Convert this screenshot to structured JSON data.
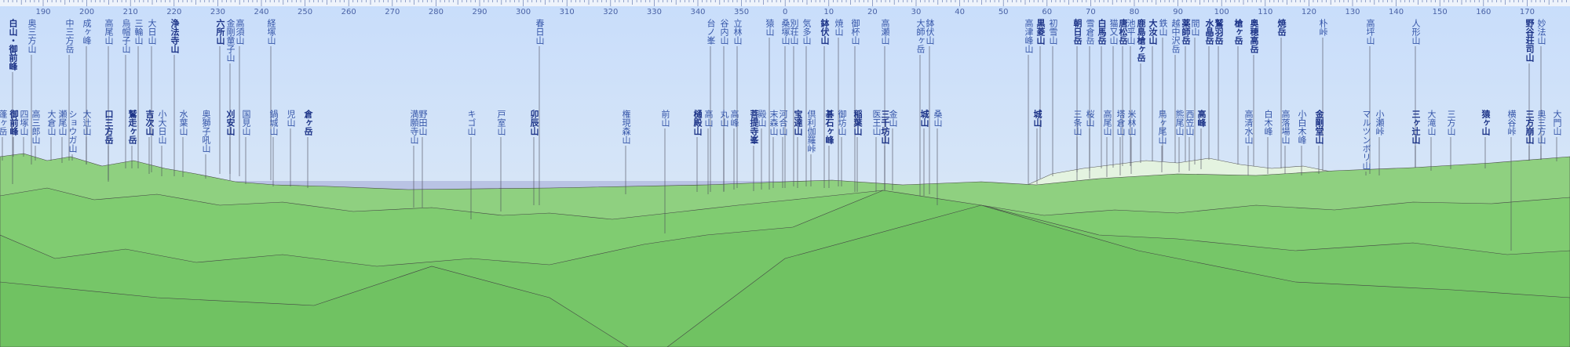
{
  "compass": {
    "bearings": [
      190,
      200,
      210,
      220,
      230,
      240,
      250,
      260,
      270,
      280,
      290,
      300,
      310,
      320,
      330,
      340,
      350,
      0,
      10,
      20,
      30,
      40,
      50,
      60,
      70,
      80,
      90,
      100,
      110,
      120,
      130,
      140,
      150,
      160,
      170
    ]
  },
  "peaks_upper": [
    "白山・御前峰",
    "奥三方山",
    "中三方岳",
    "成ヶ峰",
    "高尾山",
    "烏帽子山",
    "三輪山",
    "大日山",
    "浄法寺山",
    "六所山",
    "金剛童子山",
    "高須山",
    "経塚山",
    "春日山",
    "台ノ峯",
    "谷内山",
    "立林山",
    "猿山",
    "桑塚山",
    "別荘山",
    "気多山",
    "鉢伏山",
    "焼山",
    "御杯山",
    "高瀬山",
    "大師ヶ岳",
    "鉢伏山",
    "高津峰山",
    "黒菱山",
    "初雪山",
    "朝日岳",
    "雪倉岳",
    "白馬岳",
    "猫又山",
    "唐松岳",
    "池平山",
    "鹿島槍ヶ岳",
    "大汝山",
    "鉄山",
    "越中沢岳",
    "薬師岳",
    "間山",
    "水晶岳",
    "鷲羽岳",
    "槍ヶ岳",
    "奥穂高岳",
    "焼岳",
    "朴峠",
    "高坪山",
    "人形山",
    "野谷荘司山",
    "妙法山"
  ],
  "peaks_lower": [
    "蓬ヶ岳",
    "御前峰",
    "四塚山",
    "高三郎山",
    "大倉山",
    "瀬尾山",
    "ショウガ山",
    "大辻山",
    "口三方岳",
    "鷲走ヶ岳",
    "吉次山",
    "小大日山",
    "水葉山",
    "奥獅子吼山",
    "刈安山",
    "国見山",
    "鍋城山",
    "児山",
    "倉ヶ岳",
    "満願寺山",
    "野田山",
    "キゴ山",
    "戸室山",
    "卯辰山",
    "権現森山",
    "前山",
    "樋殿山",
    "高山",
    "丸山",
    "高峰",
    "菩提寺峯",
    "殿山",
    "末森山",
    "河合山",
    "宝達山",
    "倶利伽羅峠",
    "碁石ヶ峰",
    "御坊山",
    "稲葉山",
    "医王山",
    "三千坊山",
    "金山",
    "城山",
    "桑山",
    "城山",
    "三条山",
    "桜山",
    "高尾山",
    "塔倉山",
    "米林山",
    "鳥ヶ尾山",
    "熊尾山",
    "西笠山",
    "高峰",
    "高清水山",
    "白木峰",
    "高落場山",
    "小白木峰",
    "金剛堂山",
    "マルツンボリ山",
    "小瀬峠",
    "三ヶ辻山",
    "大滝山",
    "三方山",
    "猿ヶ山",
    "横谷峠",
    "三方崩山",
    "奥三方山",
    "大門山"
  ]
}
